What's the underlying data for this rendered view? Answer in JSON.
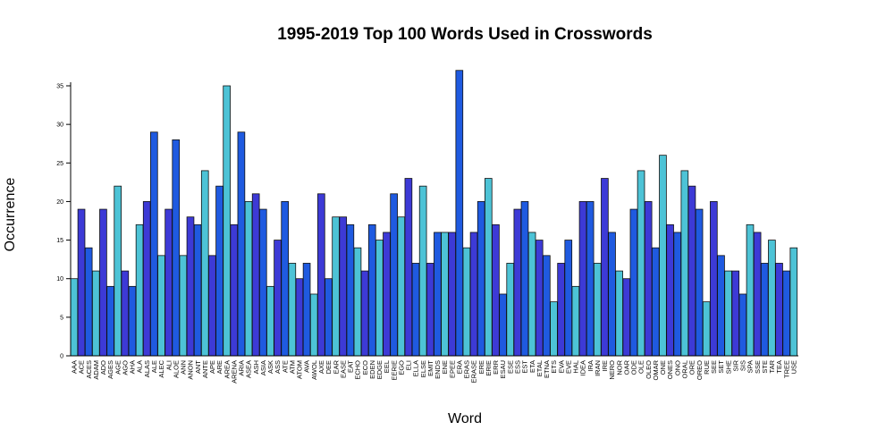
{
  "chart_data": {
    "type": "bar",
    "title": "1995-2019 Top 100 Words Used in Crosswords",
    "xlabel": "Word",
    "ylabel": "Occurrence",
    "ylim": [
      0,
      37
    ],
    "yticks": [
      0,
      5,
      10,
      15,
      20,
      25,
      30,
      35
    ],
    "grid": false,
    "categories": [
      "AAA",
      "ACE",
      "ACES",
      "ADAM",
      "ADO",
      "AGES",
      "AGE",
      "AGO",
      "AHA",
      "ALA",
      "ALAS",
      "ALE",
      "ALEC",
      "ALI",
      "ALOE",
      "ANN",
      "ANON",
      "ANT",
      "ANTE",
      "APE",
      "ARE",
      "AREA",
      "ARENA",
      "ARIA",
      "ASEA",
      "ASH",
      "ASIA",
      "ASK",
      "ASS",
      "ATE",
      "ATM",
      "ATOM",
      "AVA",
      "AWOL",
      "AXE",
      "DEE",
      "EAR",
      "EASE",
      "EAT",
      "ECHO",
      "ECO",
      "EDEN",
      "EDGE",
      "EEL",
      "EERIE",
      "EGO",
      "ELI",
      "ELLA",
      "ELSE",
      "EMIT",
      "ENDS",
      "ENE",
      "EPEE",
      "ERA",
      "ERAS",
      "ERASE",
      "ERE",
      "ERIE",
      "ERR",
      "ESAU",
      "ESE",
      "ESS",
      "EST",
      "ETA",
      "ETAL",
      "ETNA",
      "ETS",
      "EVA",
      "EVE",
      "HAL",
      "IDEA",
      "IRA",
      "IRAN",
      "IRE",
      "NERO",
      "NOR",
      "OAR",
      "ODE",
      "OLE",
      "OLEO",
      "OMAR",
      "ONE",
      "ONES",
      "ONO",
      "ORAL",
      "ORE",
      "OREO",
      "RUE",
      "SEE",
      "SET",
      "SHE",
      "SIR",
      "SIS",
      "SPA",
      "SSE",
      "STE",
      "TAR",
      "TEA",
      "TREE",
      "USE"
    ],
    "values": [
      10,
      19,
      14,
      11,
      19,
      9,
      22,
      11,
      9,
      17,
      20,
      29,
      13,
      19,
      28,
      13,
      18,
      17,
      24,
      13,
      22,
      35,
      17,
      29,
      20,
      21,
      19,
      9,
      15,
      20,
      12,
      10,
      12,
      8,
      21,
      10,
      18,
      18,
      17,
      14,
      11,
      17,
      15,
      16,
      21,
      18,
      23,
      12,
      22,
      12,
      16,
      16,
      16,
      37,
      14,
      16,
      20,
      23,
      17,
      8,
      12,
      19,
      20,
      16,
      15,
      13,
      7,
      12,
      15,
      9,
      20,
      20,
      12,
      23,
      16,
      11,
      10,
      19,
      24,
      20,
      14,
      26,
      17,
      16,
      24,
      22,
      19,
      7,
      20,
      13,
      11,
      11,
      8,
      17,
      16,
      12,
      15,
      12,
      11,
      14
    ],
    "colors": [
      "#4dc3d6",
      "#3d3ad6",
      "#1f5ae0"
    ]
  }
}
